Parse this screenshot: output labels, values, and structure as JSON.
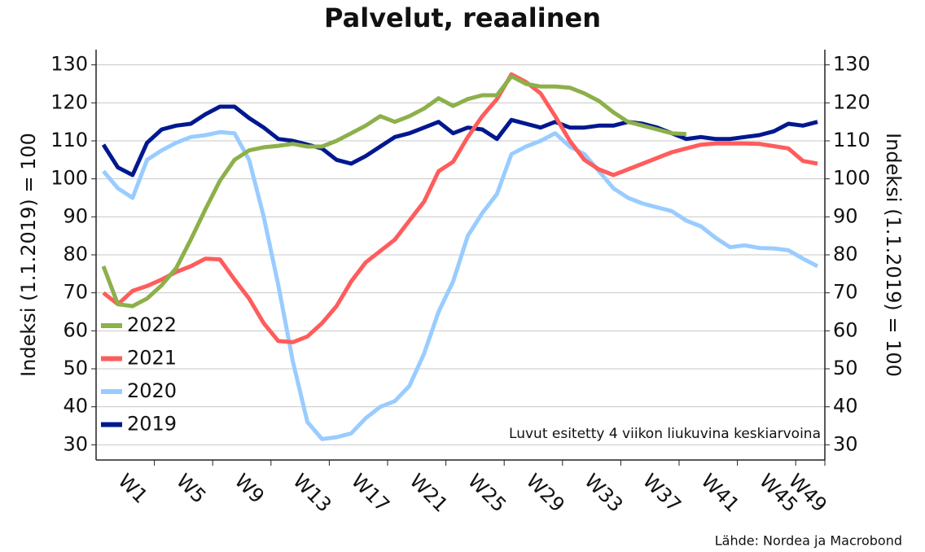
{
  "chart_data": {
    "type": "line",
    "title": "Palvelut, reaalinen",
    "ylabel": "Indeksi (1.1.2019) = 100",
    "y2label": "Indeksi (1.1.2019) = 100",
    "annotation": "Luvut esitetty 4 viikon liukuvina keskiarvoina",
    "source": "Lähde: Nordea ja Macrobond",
    "categories": [
      null,
      null,
      null,
      "W1",
      null,
      null,
      null,
      "W5",
      null,
      null,
      null,
      "W9",
      null,
      null,
      null,
      "W13",
      null,
      null,
      null,
      "W17",
      null,
      null,
      null,
      "W21",
      null,
      null,
      null,
      "W25",
      null,
      null,
      null,
      "W29",
      null,
      null,
      null,
      "W33",
      null,
      null,
      null,
      "W37",
      null,
      null,
      null,
      "W41",
      null,
      null,
      null,
      "W45",
      null,
      "W49"
    ],
    "ylim": [
      26,
      134
    ],
    "yticks": [
      30,
      40,
      50,
      60,
      70,
      80,
      90,
      100,
      110,
      120,
      130
    ],
    "y2lim": [
      26,
      134
    ],
    "y2ticks": [
      30,
      40,
      50,
      60,
      70,
      80,
      90,
      100,
      110,
      120,
      130
    ],
    "grid": true,
    "legend": "left",
    "series": [
      {
        "name": "2022",
        "color": "#8db04a",
        "values": [
          77,
          67,
          66.5,
          68.5,
          72,
          76.5,
          84,
          92,
          99.5,
          105,
          107.5,
          108.3,
          108.7,
          109.2,
          108.5,
          108.5,
          110,
          112,
          114,
          116.5,
          115,
          116.5,
          118.5,
          121.2,
          119.2,
          121,
          122,
          122,
          127,
          125,
          124.3,
          124.3,
          124,
          122.5,
          120.5,
          117.5,
          115,
          114,
          113,
          112,
          111.8,
          null,
          null,
          null,
          null,
          null,
          null,
          null,
          null,
          null
        ]
      },
      {
        "name": "2021",
        "color": "#ff5c5c",
        "values": [
          70,
          67,
          70.5,
          71.8,
          73.5,
          75.5,
          77,
          79,
          78.8,
          73.5,
          68.5,
          62,
          57.3,
          57,
          58.5,
          62,
          66.5,
          73,
          78,
          81,
          84,
          89,
          94,
          102,
          104.5,
          111,
          116.5,
          121,
          127.5,
          125.5,
          122.5,
          116.5,
          110,
          105,
          102.5,
          101,
          102.5,
          104,
          105.5,
          107,
          108,
          109,
          109.3,
          109.3,
          109.3,
          109.2,
          108.6,
          108,
          104.7,
          104
        ]
      },
      {
        "name": "2020",
        "color": "#99ccff",
        "values": [
          102,
          97.5,
          95,
          105,
          107.5,
          109.5,
          111,
          111.5,
          112.3,
          112,
          105,
          90,
          72,
          52,
          36,
          31.5,
          32,
          33,
          37,
          40,
          41.5,
          45.5,
          54,
          65,
          73,
          85,
          91,
          96,
          106.5,
          108.5,
          110,
          112,
          108.5,
          106.5,
          102,
          97.5,
          95,
          93.5,
          92.5,
          91.5,
          89,
          87.5,
          84.5,
          82,
          82.5,
          81.8,
          81.7,
          81.2,
          79,
          77
        ]
      },
      {
        "name": "2019",
        "color": "#00188f",
        "values": [
          109,
          103,
          101,
          109.5,
          113,
          114,
          114.5,
          117,
          119,
          119,
          116,
          113.5,
          110.5,
          110,
          109,
          108,
          105,
          104,
          106,
          108.5,
          111,
          112,
          113.5,
          115,
          112,
          113.5,
          113,
          110.5,
          115.5,
          114.5,
          113.5,
          115,
          113.5,
          113.5,
          114,
          114,
          115,
          114.5,
          113.5,
          112,
          110.5,
          111,
          110.5,
          110.5,
          111,
          111.5,
          112.5,
          114.5,
          114,
          115
        ]
      }
    ]
  }
}
